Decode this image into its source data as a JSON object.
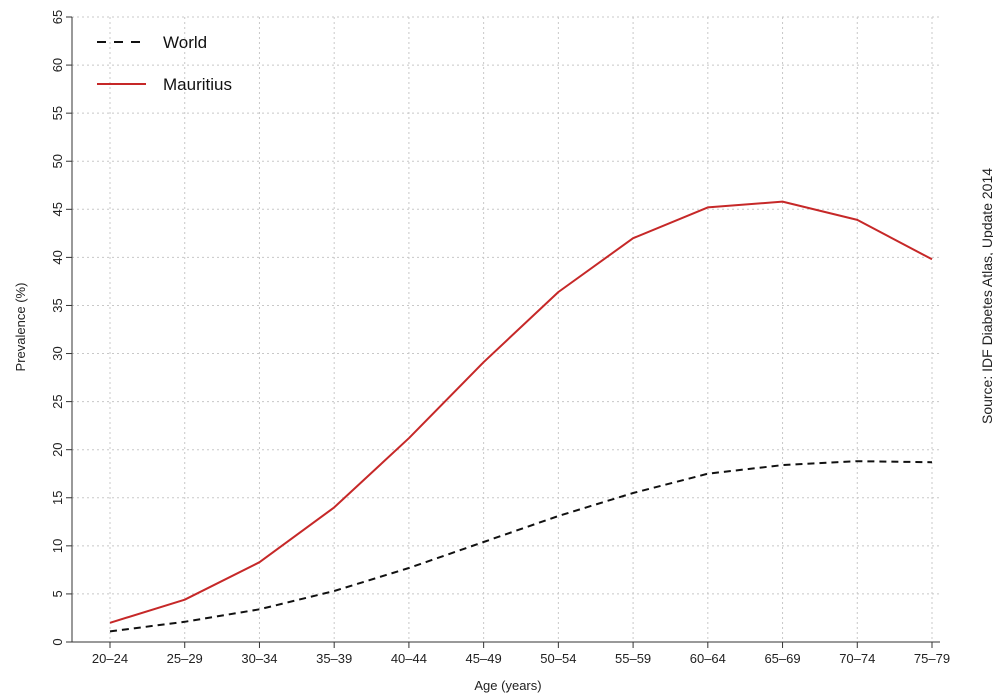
{
  "chart_data": {
    "type": "line",
    "categories": [
      "20–24",
      "25–29",
      "30–34",
      "35–39",
      "40–44",
      "45–49",
      "50–54",
      "55–59",
      "60–64",
      "65–69",
      "70–74",
      "75–79"
    ],
    "series": [
      {
        "name": "World",
        "values": [
          1.1,
          2.1,
          3.4,
          5.3,
          7.7,
          10.4,
          13.1,
          15.5,
          17.5,
          18.4,
          18.8,
          18.7
        ],
        "color": "#111111",
        "dash": "dashed"
      },
      {
        "name": "Mauritius",
        "values": [
          2.0,
          4.4,
          8.3,
          14.0,
          21.2,
          29.1,
          36.4,
          42.0,
          45.2,
          45.8,
          43.9,
          39.8
        ],
        "color": "#c62828",
        "dash": "solid"
      }
    ],
    "xlabel": "Age (years)",
    "ylabel": "Prevalence (%)",
    "ylim": [
      0,
      65
    ],
    "yticks": [
      0,
      5,
      10,
      15,
      20,
      25,
      30,
      35,
      40,
      45,
      50,
      55,
      60,
      65
    ],
    "grid": true,
    "legend_position": "top-left",
    "source": "Source: IDF Diabetes Atlas, Update 2014"
  }
}
